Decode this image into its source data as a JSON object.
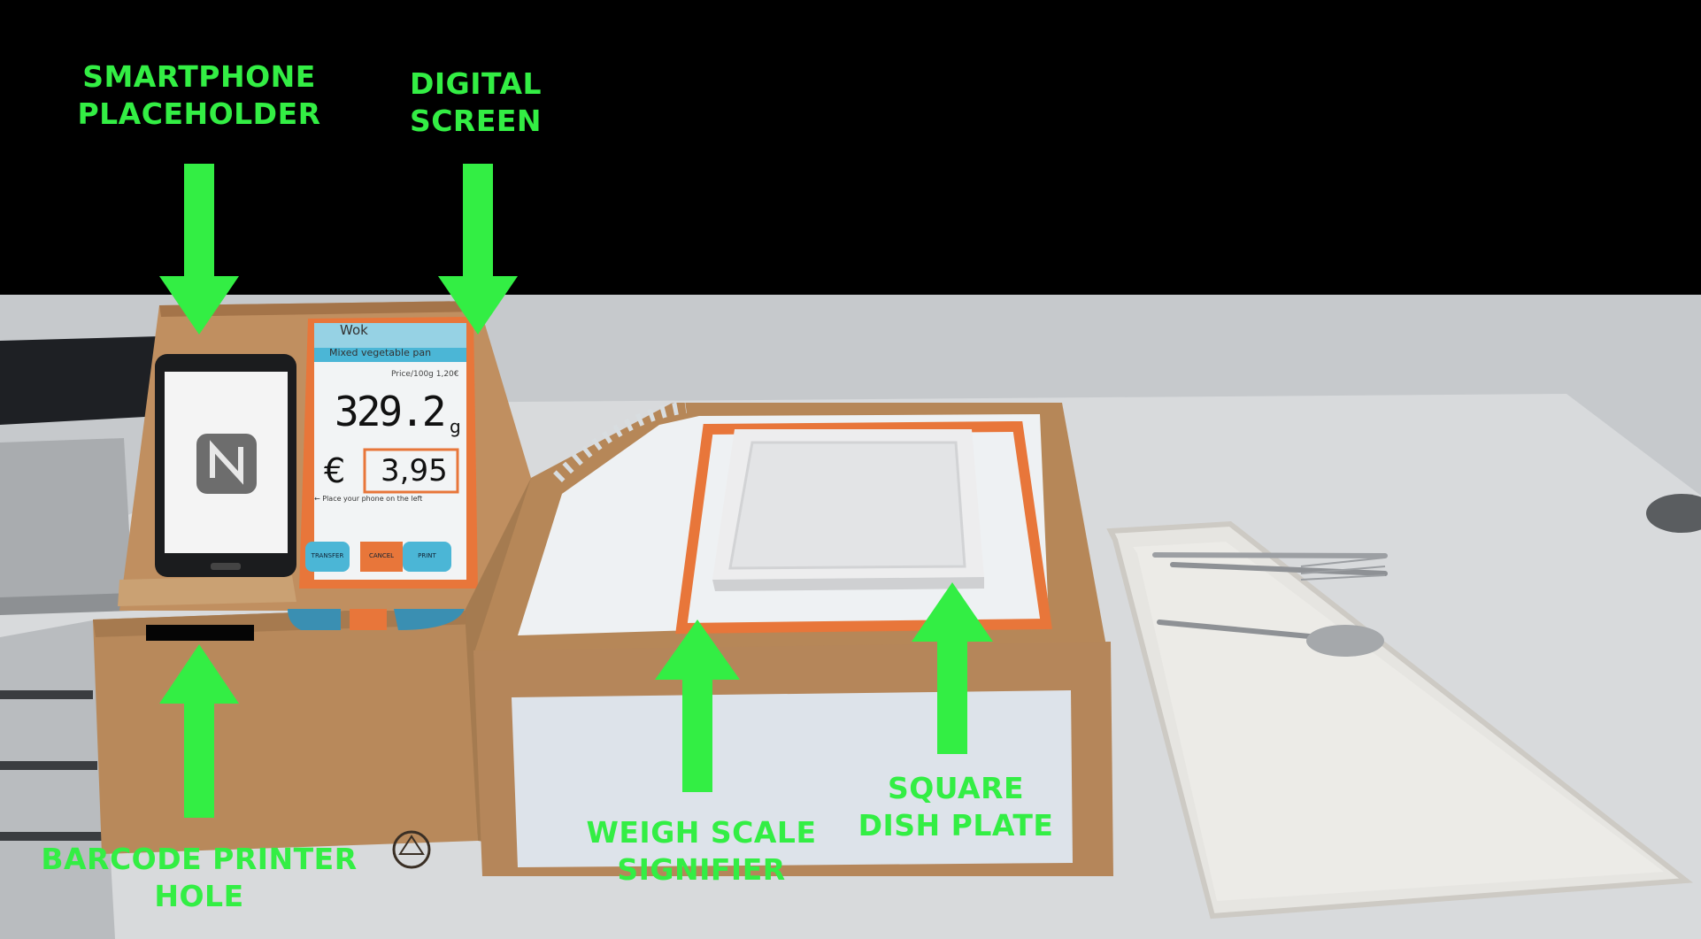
{
  "labels": {
    "smartphone": [
      "SMARTPHONE",
      "PLACEHOLDER"
    ],
    "digital_screen": [
      "DIGITAL",
      "SCREEN"
    ],
    "barcode_printer": [
      "BARCODE PRINTER",
      "HOLE"
    ],
    "weigh_scale": [
      "WEIGH SCALE",
      "SIGNIFIER"
    ],
    "square_dish": [
      "SQUARE",
      "DISH PLATE"
    ]
  },
  "prototype_screen": {
    "title": "Wok",
    "subtitle": "Mixed vegetable pan",
    "price_line": "Price/100g 1,20€",
    "weight": "329.2",
    "weight_unit": "g",
    "currency": "€",
    "price": "3,95",
    "hint": "← Place your phone on the left",
    "buttons": [
      "TRANSFER",
      "CANCEL",
      "PRINT"
    ]
  },
  "colors": {
    "annotation": "#33ee44",
    "cardboard": "#b98a5c",
    "orange": "#e8763a",
    "screen_blue": "#4bb6d6"
  }
}
